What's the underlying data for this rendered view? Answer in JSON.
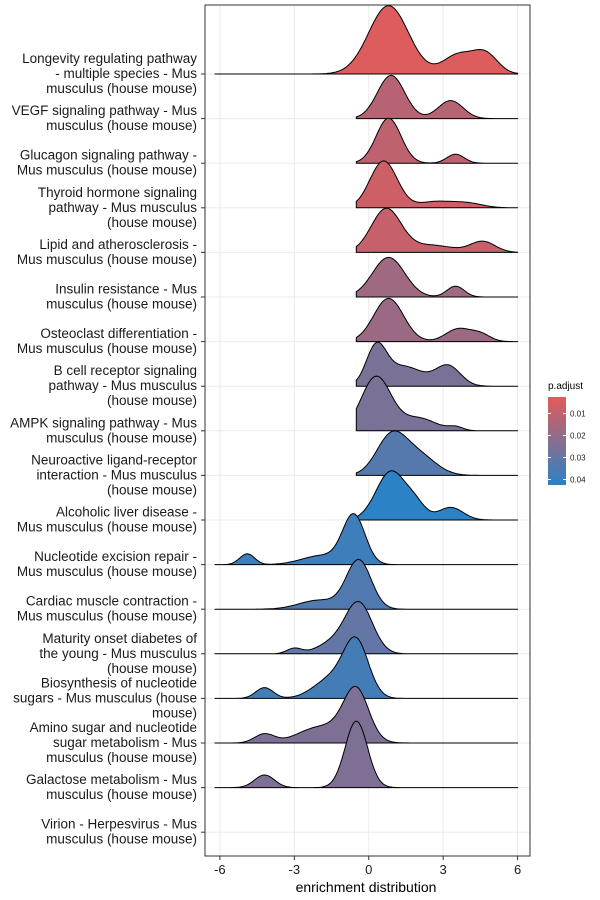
{
  "chart_data": {
    "type": "ridgeline",
    "xlabel": "enrichment distribution",
    "xlim": [
      -6.6,
      6.5
    ],
    "xticks": [
      -6,
      -3,
      0,
      3,
      6
    ],
    "xtick_labels": [
      "-6",
      "-3",
      "0",
      "3",
      "6"
    ],
    "grid": true,
    "legend": {
      "title": "p.adjust",
      "position": "right",
      "ticks": [
        0.01,
        0.02,
        0.03,
        0.04
      ],
      "tick_labels": [
        "0.01",
        "0.02",
        "0.03",
        "0.04"
      ],
      "range": [
        0.0025,
        0.0425
      ],
      "color_low": "#e45a59",
      "color_high": "#2b82c5"
    },
    "series": [
      {
        "label": [
          "Longevity regulating pathway",
          "- multiple species - Mus",
          "musculus (house mouse)"
        ],
        "p_adjust": 0.004,
        "x_range": [
          -6.2,
          6
        ],
        "peaks": [
          [
            0.8,
            0.8,
            1.9
          ],
          [
            3.6,
            0.6,
            0.53
          ],
          [
            4.7,
            0.5,
            0.55
          ]
        ]
      },
      {
        "label": [
          "VEGF signaling pathway - Mus",
          "musculus (house mouse)"
        ],
        "p_adjust": 0.0125,
        "x_range": [
          -0.5,
          6
        ],
        "peaks": [
          [
            0.9,
            0.55,
            1.2
          ],
          [
            3.3,
            0.5,
            0.5
          ]
        ]
      },
      {
        "label": [
          "Glucagon signaling pathway -",
          "Mus musculus (house mouse)"
        ],
        "p_adjust": 0.0105,
        "x_range": [
          -0.5,
          6
        ],
        "peaks": [
          [
            0.8,
            0.5,
            1.25
          ],
          [
            3.5,
            0.35,
            0.25
          ]
        ]
      },
      {
        "label": [
          "Thyroid hormone signaling",
          "pathway - Mus musculus",
          "(house mouse)"
        ],
        "p_adjust": 0.0075,
        "x_range": [
          -0.5,
          6
        ],
        "peaks": [
          [
            0.6,
            0.55,
            1.3
          ],
          [
            2.7,
            0.7,
            0.17
          ],
          [
            4.0,
            0.6,
            0.12
          ]
        ]
      },
      {
        "label": [
          "Lipid and atherosclerosis -",
          "Mus musculus (house mouse)"
        ],
        "p_adjust": 0.009,
        "x_range": [
          -0.5,
          6
        ],
        "peaks": [
          [
            0.7,
            0.6,
            1.2
          ],
          [
            2.5,
            0.9,
            0.2
          ],
          [
            4.6,
            0.5,
            0.3
          ]
        ]
      },
      {
        "label": [
          "Insulin resistance - Mus",
          "musculus (house mouse)"
        ],
        "p_adjust": 0.0175,
        "x_range": [
          -0.5,
          6
        ],
        "peaks": [
          [
            0.8,
            0.65,
            1.1
          ],
          [
            3.5,
            0.35,
            0.3
          ]
        ]
      },
      {
        "label": [
          "Osteoclast differentiation -",
          "Mus musculus (house mouse)"
        ],
        "p_adjust": 0.0185,
        "x_range": [
          -0.5,
          6
        ],
        "peaks": [
          [
            0.8,
            0.6,
            1.2
          ],
          [
            3.6,
            0.5,
            0.35
          ],
          [
            4.5,
            0.4,
            0.2
          ]
        ]
      },
      {
        "label": [
          "B cell receptor signaling",
          "pathway - Mus musculus",
          "(house mouse)"
        ],
        "p_adjust": 0.0255,
        "x_range": [
          -0.5,
          6
        ],
        "peaks": [
          [
            0.3,
            0.4,
            1.0
          ],
          [
            1.4,
            0.8,
            0.55
          ],
          [
            3.2,
            0.5,
            0.55
          ]
        ]
      },
      {
        "label": [
          "AMPK signaling pathway - Mus",
          "musculus (house mouse)"
        ],
        "p_adjust": 0.0255,
        "x_range": [
          -0.5,
          6
        ],
        "peaks": [
          [
            0.3,
            0.6,
            1.5
          ],
          [
            2.0,
            0.7,
            0.35
          ],
          [
            3.5,
            0.3,
            0.1
          ]
        ]
      },
      {
        "label": [
          "Neuroactive ligand-receptor",
          "interaction - Mus musculus",
          "(house mouse)"
        ],
        "p_adjust": 0.0335,
        "x_range": [
          -0.5,
          6
        ],
        "peaks": [
          [
            0.9,
            0.6,
            1.05
          ],
          [
            2.0,
            0.7,
            0.55
          ]
        ]
      },
      {
        "label": [
          "Alcoholic liver disease -",
          "Mus musculus (house mouse)"
        ],
        "p_adjust": 0.0425,
        "x_range": [
          -0.5,
          6
        ],
        "peaks": [
          [
            0.9,
            0.6,
            1.35
          ],
          [
            1.9,
            0.4,
            0.35
          ],
          [
            3.3,
            0.5,
            0.35
          ]
        ]
      },
      {
        "label": [
          "Nucleotide excision repair -",
          "Mus musculus (house mouse)"
        ],
        "p_adjust": 0.0385,
        "x_range": [
          -6.2,
          6
        ],
        "peaks": [
          [
            -0.6,
            0.45,
            1.35
          ],
          [
            -1.9,
            0.8,
            0.25
          ],
          [
            -4.9,
            0.3,
            0.3
          ]
        ]
      },
      {
        "label": [
          "Cardiac muscle contraction -",
          "Mus musculus (house mouse)"
        ],
        "p_adjust": 0.0345,
        "x_range": [
          -6.2,
          6
        ],
        "peaks": [
          [
            -0.4,
            0.5,
            1.35
          ],
          [
            -2.0,
            0.8,
            0.25
          ]
        ]
      },
      {
        "label": [
          "Maturity onset diabetes of",
          "the young - Mus musculus",
          "(house mouse)"
        ],
        "p_adjust": 0.0305,
        "x_range": [
          -6.2,
          6
        ],
        "peaks": [
          [
            -0.4,
            0.55,
            1.4
          ],
          [
            -1.5,
            0.6,
            0.28
          ],
          [
            -3.0,
            0.3,
            0.15
          ]
        ]
      },
      {
        "label": [
          "Biosynthesis of nucleotide",
          "sugars - Mus musculus (house",
          "mouse)"
        ],
        "p_adjust": 0.037,
        "x_range": [
          -6.2,
          6
        ],
        "peaks": [
          [
            -0.5,
            0.5,
            1.5
          ],
          [
            -1.5,
            0.7,
            0.55
          ],
          [
            -4.2,
            0.35,
            0.3
          ]
        ]
      },
      {
        "label": [
          "Amino sugar and nucleotide",
          "sugar metabolism - Mus",
          "musculus (house mouse)"
        ],
        "p_adjust": 0.0245,
        "x_range": [
          -6.2,
          6
        ],
        "peaks": [
          [
            -0.5,
            0.5,
            1.35
          ],
          [
            -1.5,
            0.9,
            0.4
          ],
          [
            -4.2,
            0.4,
            0.25
          ],
          [
            -2.5,
            0.7,
            0.15
          ]
        ]
      },
      {
        "label": [
          "Galactose metabolism - Mus",
          "musculus (house mouse)"
        ],
        "p_adjust": 0.0245,
        "x_range": [
          -6.2,
          6
        ],
        "peaks": [
          [
            -0.5,
            0.45,
            1.85
          ],
          [
            -4.2,
            0.4,
            0.35
          ]
        ]
      },
      {
        "label": [
          "Virion - Herpesvirus - Mus",
          "musculus (house mouse)"
        ],
        "p_adjust": null,
        "x_range": null,
        "peaks": []
      }
    ]
  }
}
